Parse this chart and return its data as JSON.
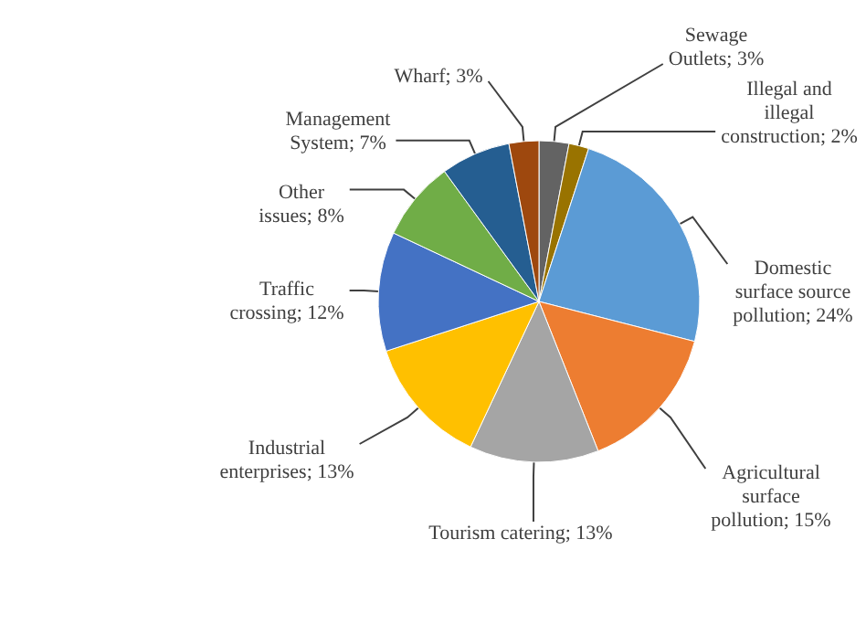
{
  "chart_data": {
    "type": "pie",
    "categories": [
      "Sewage Outlets",
      "Illegal and illegal construction",
      "Domestic surface source pollution",
      "Agricultural surface pollution",
      "Tourism catering",
      "Industrial enterprises",
      "Traffic crossing",
      "Other issues",
      "Management System",
      "Wharf"
    ],
    "values": [
      3,
      2,
      24,
      15,
      13,
      13,
      12,
      8,
      7,
      3
    ],
    "value_labels": [
      "3%",
      "2%",
      "24%",
      "15%",
      "13%",
      "13%",
      "12%",
      "8%",
      "7%",
      "3%"
    ],
    "colors": [
      "#636363",
      "#997300",
      "#5b9bd5",
      "#ed7d31",
      "#a5a5a5",
      "#ffc000",
      "#4472c4",
      "#70ad47",
      "#255e91",
      "#9e480e"
    ]
  }
}
